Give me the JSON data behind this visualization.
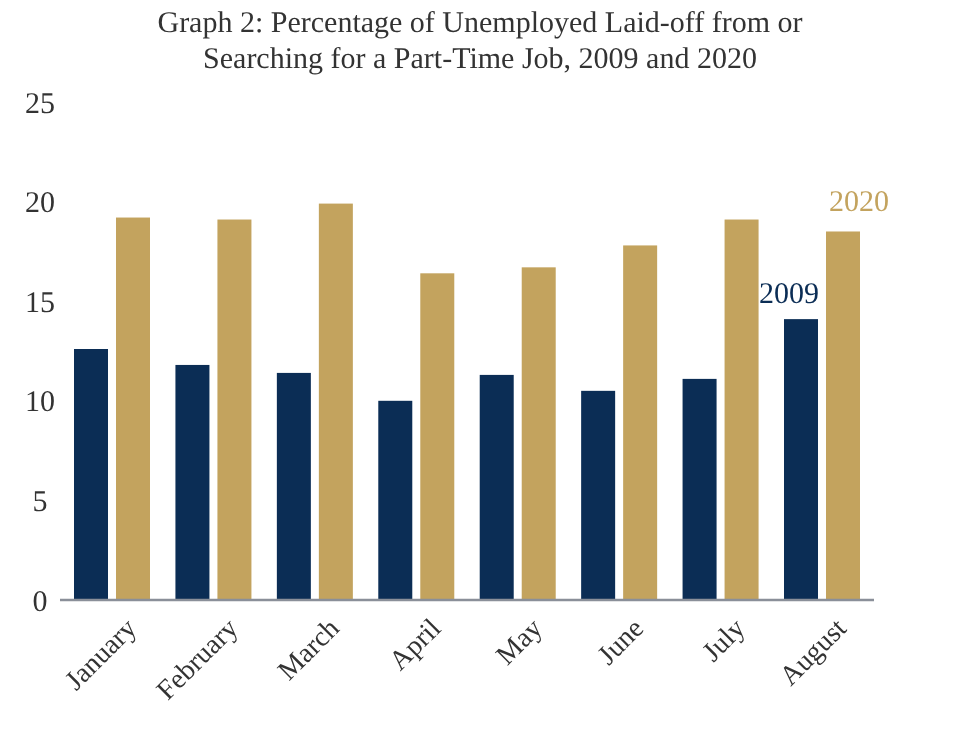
{
  "chart_data": {
    "type": "bar",
    "title": "Graph 2: Percentage of Unemployed  Laid-off from or Searching for a Part-Time Job, 2009 and 2020",
    "categories": [
      "January",
      "February",
      "March",
      "April",
      "May",
      "June",
      "July",
      "August"
    ],
    "series": [
      {
        "name": "2009",
        "color": "#0b2d55",
        "values": [
          12.6,
          11.8,
          11.4,
          10.0,
          11.3,
          10.5,
          11.1,
          14.1
        ]
      },
      {
        "name": "2020",
        "color": "#c3a35e",
        "values": [
          19.2,
          19.1,
          19.9,
          16.4,
          16.7,
          17.8,
          19.1,
          18.5
        ]
      }
    ],
    "ylim": [
      0,
      25
    ],
    "yticks": [
      0,
      5,
      10,
      15,
      20,
      25
    ],
    "grid": false,
    "legend": "top right"
  }
}
